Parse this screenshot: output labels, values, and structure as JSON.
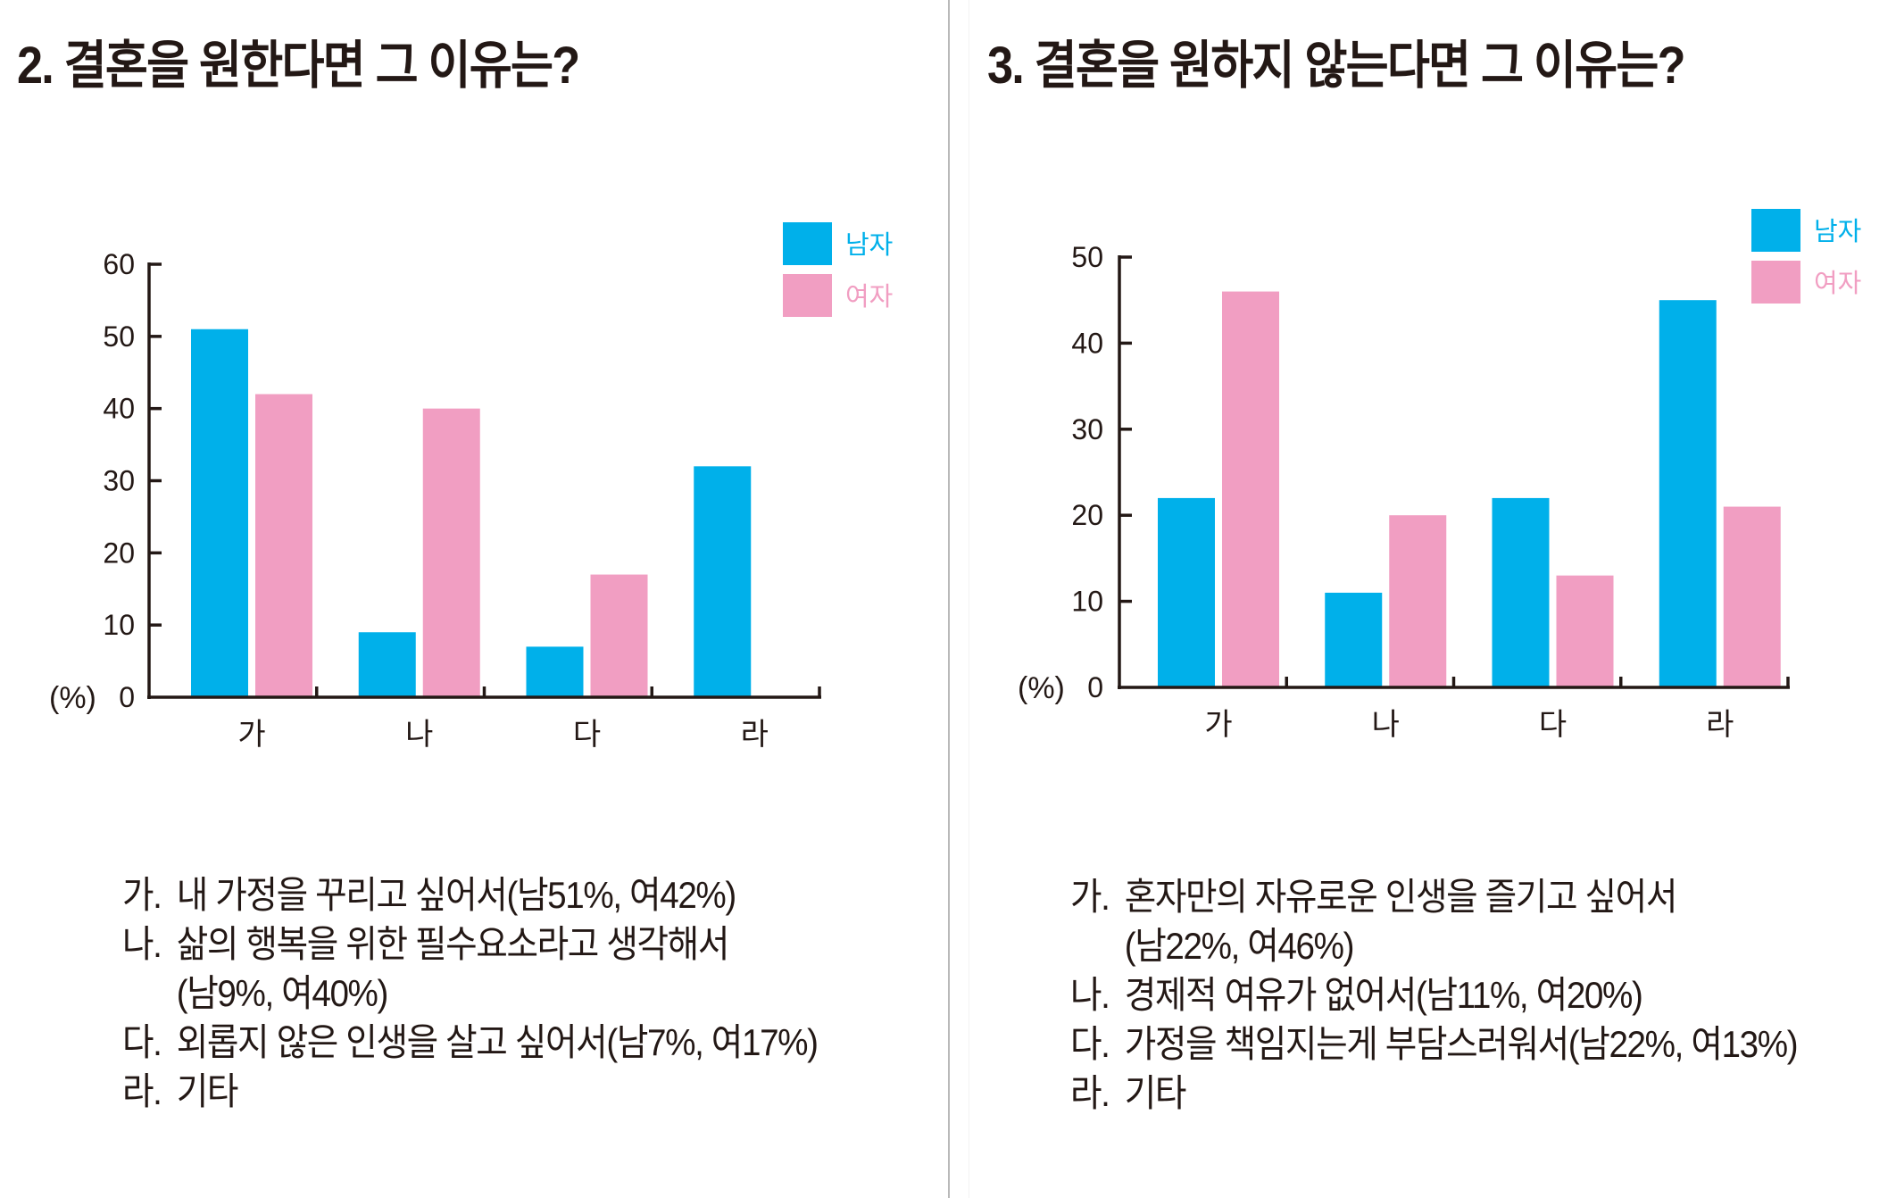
{
  "colors": {
    "male": "#00b0ea",
    "female": "#f19ec2",
    "axis": "#231815"
  },
  "chart_data": [
    {
      "type": "bar",
      "title": "2. 결혼을 원한다면 그 이유는?",
      "categories": [
        "가",
        "나",
        "다",
        "라"
      ],
      "series": [
        {
          "name": "남자",
          "values": [
            51,
            9,
            7,
            32
          ]
        },
        {
          "name": "여자",
          "values": [
            42,
            40,
            17,
            0
          ]
        }
      ],
      "ylabel": "(%)",
      "ylim": [
        0,
        60
      ],
      "yticks": [
        "0",
        "10",
        "20",
        "30",
        "40",
        "50",
        "60"
      ],
      "legend": "top-right",
      "grid": false
    },
    {
      "type": "bar",
      "title": "3. 결혼을 원하지 않는다면 그 이유는?",
      "categories": [
        "가",
        "나",
        "다",
        "라"
      ],
      "series": [
        {
          "name": "남자",
          "values": [
            22,
            11,
            22,
            45
          ]
        },
        {
          "name": "여자",
          "values": [
            46,
            20,
            13,
            21
          ]
        }
      ],
      "ylabel": "(%)",
      "ylim": [
        0,
        50
      ],
      "yticks": [
        "0",
        "10",
        "20",
        "30",
        "40",
        "50"
      ],
      "legend": "top-right",
      "grid": false
    }
  ],
  "descriptions": [
    [
      {
        "label": "가.",
        "lines": [
          "내 가정을 꾸리고 싶어서(남51%, 여42%)"
        ]
      },
      {
        "label": "나.",
        "lines": [
          "삶의 행복을 위한 필수요소라고 생각해서",
          "(남9%, 여40%)"
        ]
      },
      {
        "label": "다.",
        "lines": [
          "외롭지 않은 인생을 살고 싶어서(남7%, 여17%)"
        ]
      },
      {
        "label": "라.",
        "lines": [
          "기타"
        ]
      }
    ],
    [
      {
        "label": "가.",
        "lines": [
          "혼자만의 자유로운 인생을 즐기고 싶어서",
          "(남22%, 여46%)"
        ]
      },
      {
        "label": "나.",
        "lines": [
          "경제적 여유가 없어서(남11%, 여20%)"
        ]
      },
      {
        "label": "다.",
        "lines": [
          "가정을 책임지는게 부담스러워서(남22%, 여13%)"
        ]
      },
      {
        "label": "라.",
        "lines": [
          "기타"
        ]
      }
    ]
  ]
}
